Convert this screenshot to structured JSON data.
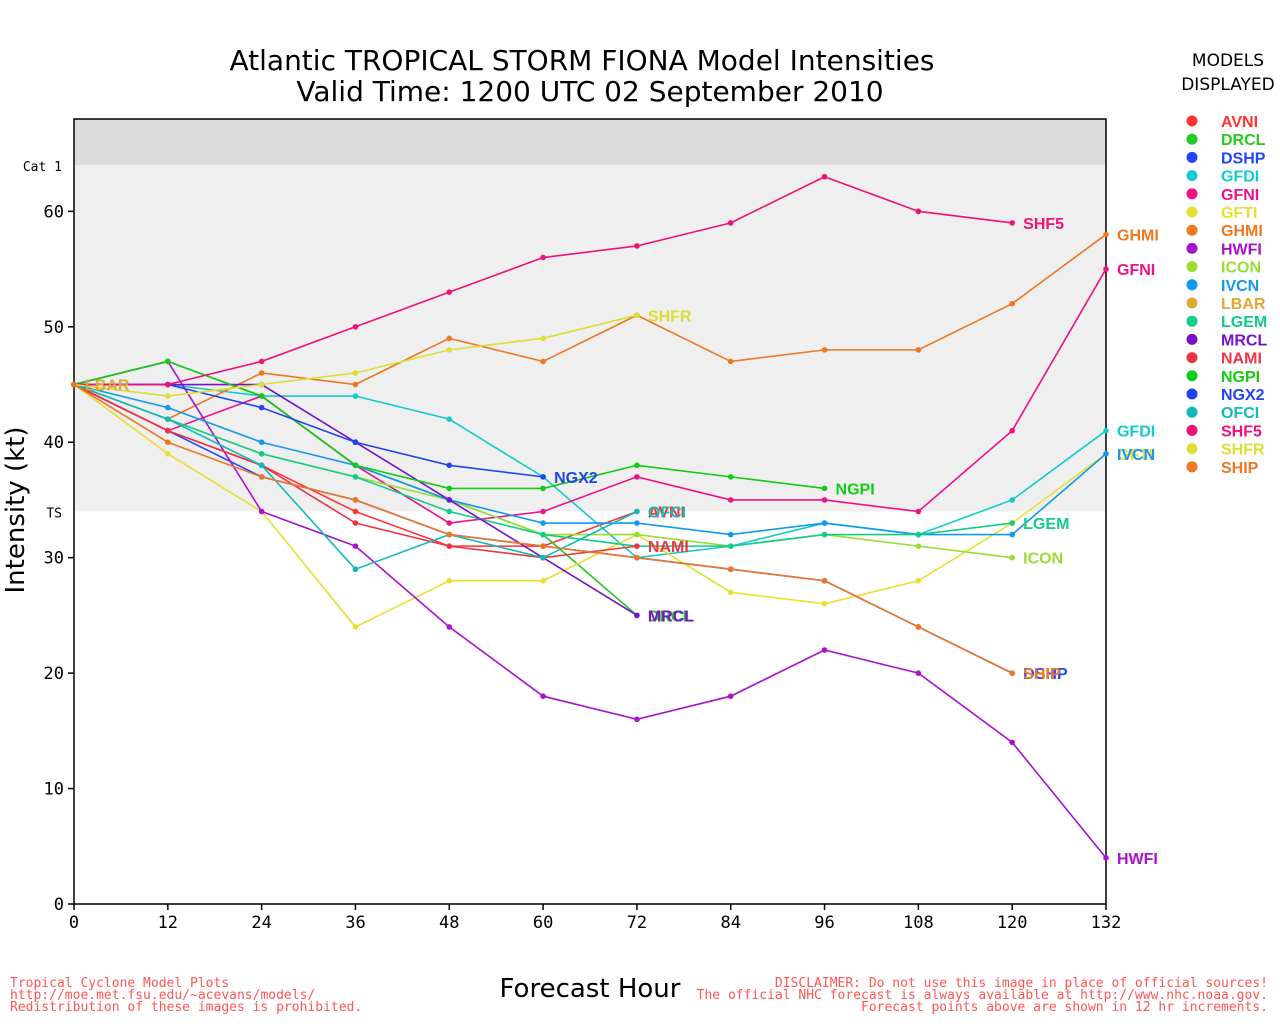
{
  "chart_data": {
    "type": "line",
    "title": "Atlantic TROPICAL STORM FIONA Model Intensities",
    "subtitle": "Valid Time: 1200 UTC 02 September 2010",
    "xlabel": "Forecast Hour",
    "ylabel": "Intensity (kt)",
    "xlim": [
      0,
      132
    ],
    "ylim": [
      0,
      68
    ],
    "xticks": [
      0,
      12,
      24,
      36,
      48,
      60,
      72,
      84,
      96,
      108,
      120,
      132
    ],
    "yticks": [
      0,
      10,
      20,
      30,
      40,
      50,
      60
    ],
    "bands": [
      {
        "label": "TS",
        "from": 34,
        "to": 64,
        "color": "#efefef"
      },
      {
        "label": "Cat 1",
        "from": 64,
        "to": 68,
        "color": "#dcdcdc"
      }
    ],
    "legend": {
      "title_line1": "MODELS",
      "title_line2": "DISPLAYED",
      "position": "right"
    },
    "series": [
      {
        "name": "AVNI",
        "color": "#ff3333",
        "x": [
          0,
          12,
          24,
          36,
          48,
          60,
          72
        ],
        "y": [
          45,
          41,
          38,
          34,
          31,
          31,
          34
        ]
      },
      {
        "name": "DRCL",
        "color": "#22cc22",
        "x": [
          0,
          12,
          24,
          36,
          48,
          60,
          72
        ],
        "y": [
          45,
          47,
          44,
          38,
          35,
          32,
          25
        ]
      },
      {
        "name": "DSHP",
        "color": "#2244ff",
        "x": [
          0,
          12,
          24,
          36,
          48,
          60,
          72,
          84,
          96,
          108,
          120
        ],
        "y": [
          45,
          41,
          37,
          35,
          32,
          31,
          30,
          29,
          28,
          24,
          20
        ]
      },
      {
        "name": "GFDI",
        "color": "#11cccc",
        "x": [
          0,
          12,
          24,
          36,
          48,
          60,
          72,
          84,
          96,
          108,
          120,
          132
        ],
        "y": [
          45,
          45,
          44,
          44,
          42,
          37,
          30,
          31,
          33,
          32,
          35,
          41
        ]
      },
      {
        "name": "GFNI",
        "color": "#ee1188",
        "x": [
          0,
          12,
          24,
          36,
          48,
          60,
          72,
          84,
          96,
          108,
          120,
          132
        ],
        "y": [
          45,
          41,
          44,
          38,
          33,
          34,
          37,
          35,
          35,
          34,
          41,
          55
        ]
      },
      {
        "name": "GFTI",
        "color": "#e8e030",
        "x": [
          0,
          12,
          24,
          36,
          48,
          60,
          72,
          84,
          96,
          108,
          120,
          132
        ],
        "y": [
          45,
          39,
          34,
          24,
          28,
          28,
          32,
          27,
          26,
          28,
          33,
          39
        ]
      },
      {
        "name": "GHMI",
        "color": "#ee7722",
        "x": [
          0,
          12,
          24,
          36,
          48,
          60,
          72,
          84,
          96,
          108,
          120,
          132
        ],
        "y": [
          45,
          42,
          46,
          45,
          49,
          47,
          51,
          47,
          48,
          48,
          52,
          58
        ]
      },
      {
        "name": "HWFI",
        "color": "#aa11cc",
        "x": [
          0,
          12,
          24,
          36,
          48,
          60,
          72,
          84,
          96,
          108,
          120,
          132
        ],
        "y": [
          45,
          47,
          34,
          31,
          24,
          18,
          16,
          18,
          22,
          20,
          14,
          4
        ]
      },
      {
        "name": "ICON",
        "color": "#99dd33",
        "x": [
          0,
          12,
          24,
          36,
          48,
          60,
          72,
          84,
          96,
          108,
          120
        ],
        "y": [
          45,
          42,
          39,
          37,
          35,
          32,
          32,
          31,
          32,
          31,
          30
        ]
      },
      {
        "name": "IVCN",
        "color": "#1199ee",
        "x": [
          0,
          12,
          24,
          36,
          48,
          60,
          72,
          84,
          96,
          108,
          120,
          132
        ],
        "y": [
          45,
          43,
          40,
          38,
          35,
          33,
          33,
          32,
          33,
          32,
          32,
          39
        ]
      },
      {
        "name": "LBAR",
        "color": "#ddaa33",
        "x": [
          0
        ],
        "y": [
          45
        ]
      },
      {
        "name": "LGEM",
        "color": "#11cc88",
        "x": [
          0,
          12,
          24,
          36,
          48,
          60,
          72,
          84,
          96,
          108,
          120
        ],
        "y": [
          45,
          42,
          39,
          37,
          34,
          32,
          31,
          31,
          32,
          32,
          33
        ]
      },
      {
        "name": "MRCL",
        "color": "#7711cc",
        "x": [
          0,
          12,
          24,
          36,
          48,
          60,
          72
        ],
        "y": [
          45,
          45,
          45,
          40,
          35,
          30,
          25
        ]
      },
      {
        "name": "NAMI",
        "color": "#ee3344",
        "x": [
          0,
          12,
          24,
          36,
          48,
          60,
          72
        ],
        "y": [
          45,
          41,
          38,
          33,
          31,
          30,
          31
        ]
      },
      {
        "name": "NGPI",
        "color": "#11cc11",
        "x": [
          0,
          12,
          24,
          36,
          48,
          60,
          72,
          84,
          96
        ],
        "y": [
          45,
          47,
          44,
          38,
          36,
          36,
          38,
          37,
          36
        ]
      },
      {
        "name": "NGX2",
        "color": "#2244ee",
        "x": [
          0,
          12,
          24,
          36,
          48,
          60
        ],
        "y": [
          45,
          45,
          43,
          40,
          38,
          37
        ]
      },
      {
        "name": "OFCI",
        "color": "#11bbbb",
        "x": [
          0,
          12,
          24,
          36,
          48,
          60,
          72
        ],
        "y": [
          45,
          42,
          38,
          29,
          32,
          30,
          34
        ]
      },
      {
        "name": "SHF5",
        "color": "#ee1177",
        "x": [
          0,
          12,
          24,
          36,
          48,
          60,
          72,
          84,
          96,
          108,
          120
        ],
        "y": [
          45,
          45,
          47,
          50,
          53,
          56,
          57,
          59,
          63,
          60,
          59
        ]
      },
      {
        "name": "SHFR",
        "color": "#dddd33",
        "x": [
          0,
          12,
          24,
          36,
          48,
          60,
          72
        ],
        "y": [
          45,
          44,
          45,
          46,
          48,
          49,
          51
        ]
      },
      {
        "name": "SHIP",
        "color": "#ee7722",
        "x": [
          0,
          12,
          24,
          36,
          48,
          60,
          72,
          84,
          96,
          108,
          120
        ],
        "y": [
          45,
          40,
          37,
          35,
          32,
          31,
          30,
          29,
          28,
          24,
          20
        ]
      }
    ],
    "end_labels": [
      {
        "text": "SHF5",
        "series": "SHF5"
      },
      {
        "text": "GHMI",
        "series": "GHMI"
      },
      {
        "text": "GFNI",
        "series": "GFNI"
      },
      {
        "text": "SHFR",
        "series": "SHFR"
      },
      {
        "text": "NGX2",
        "series": "NGX2"
      },
      {
        "text": "NGPI",
        "series": "NGPI"
      },
      {
        "text": "AVNI",
        "series": "AVNI"
      },
      {
        "text": "NAMI",
        "series": "NAMI"
      },
      {
        "text": "OFCI",
        "series": "OFCI"
      },
      {
        "text": "DRCL",
        "series": "DRCL"
      },
      {
        "text": "MRCL",
        "series": "MRCL"
      },
      {
        "text": "GFDI",
        "series": "GFDI"
      },
      {
        "text": "GFTI",
        "series": "GFTI"
      },
      {
        "text": "IVCN",
        "series": "IVCN"
      },
      {
        "text": "LGEM",
        "series": "LGEM"
      },
      {
        "text": "ICON",
        "series": "ICON"
      },
      {
        "text": "DSHP",
        "series": "DSHP"
      },
      {
        "text": "SHIP",
        "series": "SHIP"
      },
      {
        "text": "HWFI",
        "series": "HWFI"
      },
      {
        "text": "LBAR",
        "series": "LBAR"
      }
    ]
  },
  "footer": {
    "left_line1": "Tropical Cyclone Model Plots",
    "left_line2": "http://moe.met.fsu.edu/~acevans/models/",
    "left_line3": "Redistribution of these images is prohibited.",
    "right_line1": "DISCLAIMER: Do not use this image in place of official sources!",
    "right_line2": "The official NHC forecast is always available at http://www.nhc.noaa.gov.",
    "right_line3": "Forecast points above are shown in 12 hr increments."
  }
}
